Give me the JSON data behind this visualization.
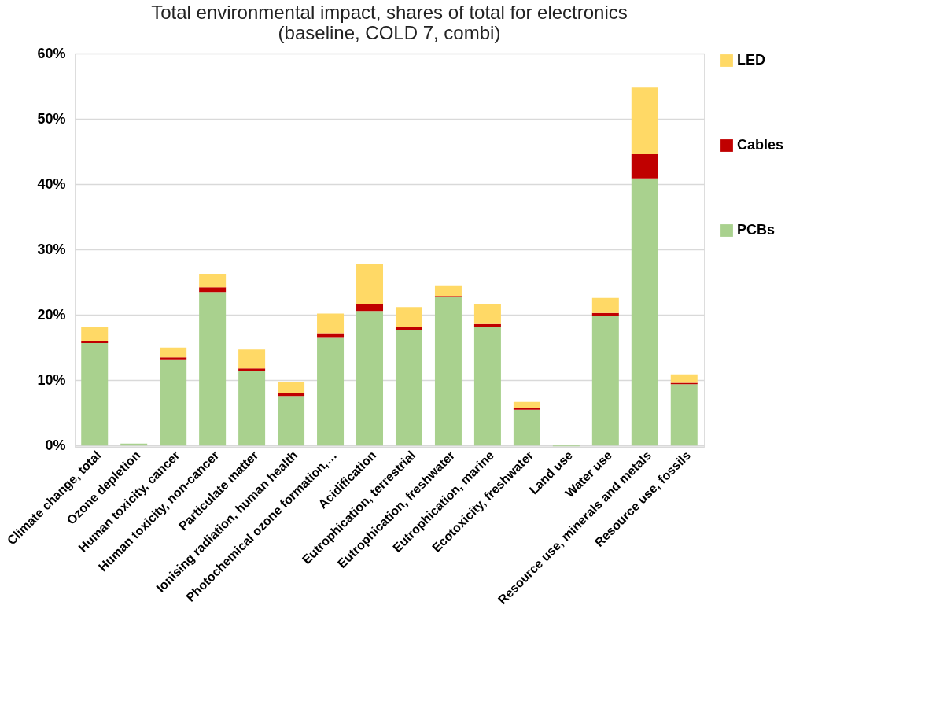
{
  "chart_data": {
    "type": "bar",
    "title": [
      "Total environmental impact, shares of total for electronics",
      "(baseline, COLD 7, combi)"
    ],
    "categories": [
      "Climate change, total",
      "Ozone depletion",
      "Human toxicity, cancer",
      "Human toxicity, non-cancer",
      "Particulate matter",
      "Ionising radiation, human health",
      "Photochemical ozone formation,…",
      "Acidification",
      "Eutrophication, terrestrial",
      "Eutrophication, freshwater",
      "Eutrophication, marine",
      "Ecotoxicity, freshwater",
      "Land use",
      "Water use",
      "Resource use, minerals and metals",
      "Resource use, fossils"
    ],
    "stacked": true,
    "series": [
      {
        "name": "PCBs",
        "color": "#a9d18e",
        "values": [
          15.7,
          0.3,
          13.2,
          23.5,
          11.4,
          7.6,
          16.6,
          20.6,
          17.7,
          22.7,
          18.1,
          5.5,
          -0.1,
          19.9,
          40.9,
          9.4
        ]
      },
      {
        "name": "Cables",
        "color": "#c00000",
        "values": [
          0.3,
          0,
          0.3,
          0.7,
          0.4,
          0.4,
          0.6,
          1.0,
          0.5,
          0.2,
          0.5,
          0.2,
          0,
          0.4,
          3.7,
          0.2
        ]
      },
      {
        "name": "LED",
        "color": "#ffd966",
        "values": [
          2.2,
          0,
          1.5,
          2.1,
          2.9,
          1.7,
          3.0,
          6.2,
          3.0,
          1.6,
          3.0,
          1.0,
          0,
          2.3,
          10.2,
          1.3
        ]
      }
    ],
    "ylim": [
      -0.2,
      60
    ],
    "yticks": [
      {
        "value": 0,
        "label": "0%"
      },
      {
        "value": 10,
        "label": "10%"
      },
      {
        "value": 20,
        "label": "20%"
      },
      {
        "value": 30,
        "label": "30%"
      },
      {
        "value": 40,
        "label": "40%"
      },
      {
        "value": 50,
        "label": "50%"
      },
      {
        "value": 60,
        "label": "60%"
      }
    ],
    "grid": "y",
    "legend": "right"
  }
}
